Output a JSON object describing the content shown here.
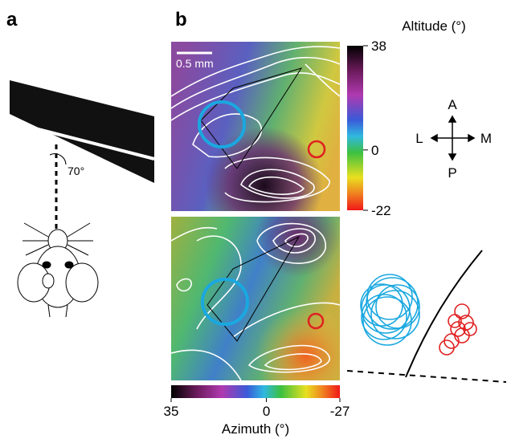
{
  "panel_a": {
    "label": "a",
    "angle": "70°"
  },
  "panel_b": {
    "label": "b",
    "scale_bar": "0.5 mm",
    "altitude_colorbar": {
      "title": "Altitude (°)",
      "lim": [
        -22,
        38
      ],
      "ticks": [
        38,
        0,
        -22
      ]
    },
    "azimuth_colorbar": {
      "title": "Azimuth (°)",
      "lim": [
        35,
        -27
      ],
      "ticks": [
        35,
        0,
        -27
      ]
    },
    "compass": {
      "up": "A",
      "left": "L",
      "right": "M",
      "down": "P"
    }
  }
}
